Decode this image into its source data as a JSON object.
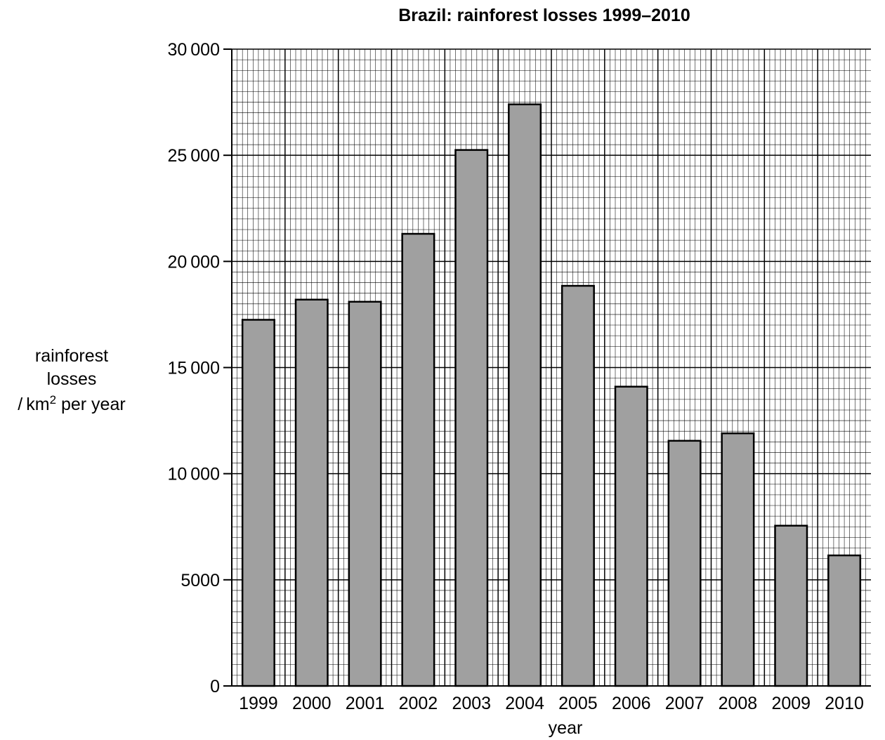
{
  "chart_data": {
    "type": "bar",
    "title": "Brazil: rainforest losses 1999–2010",
    "xlabel": "year",
    "ylabel": {
      "line1": "rainforest",
      "line2": "losses",
      "line3_prefix": "/ km",
      "line3_sup": "2",
      "line3_suffix": " per year"
    },
    "categories": [
      "1999",
      "2000",
      "2001",
      "2002",
      "2003",
      "2004",
      "2005",
      "2006",
      "2007",
      "2008",
      "2009",
      "2010"
    ],
    "values": [
      17250,
      18200,
      18100,
      21300,
      25250,
      27400,
      18850,
      14100,
      11550,
      11900,
      7550,
      6150
    ],
    "ylim": [
      0,
      30000
    ],
    "yticks": [
      0,
      5000,
      10000,
      15000,
      20000,
      25000,
      30000
    ],
    "ytick_labels": [
      "0",
      "5000",
      "10 000",
      "15 000",
      "20 000",
      "25 000",
      "30 000"
    ],
    "grid": true,
    "bar_color": "#a0a0a0"
  }
}
